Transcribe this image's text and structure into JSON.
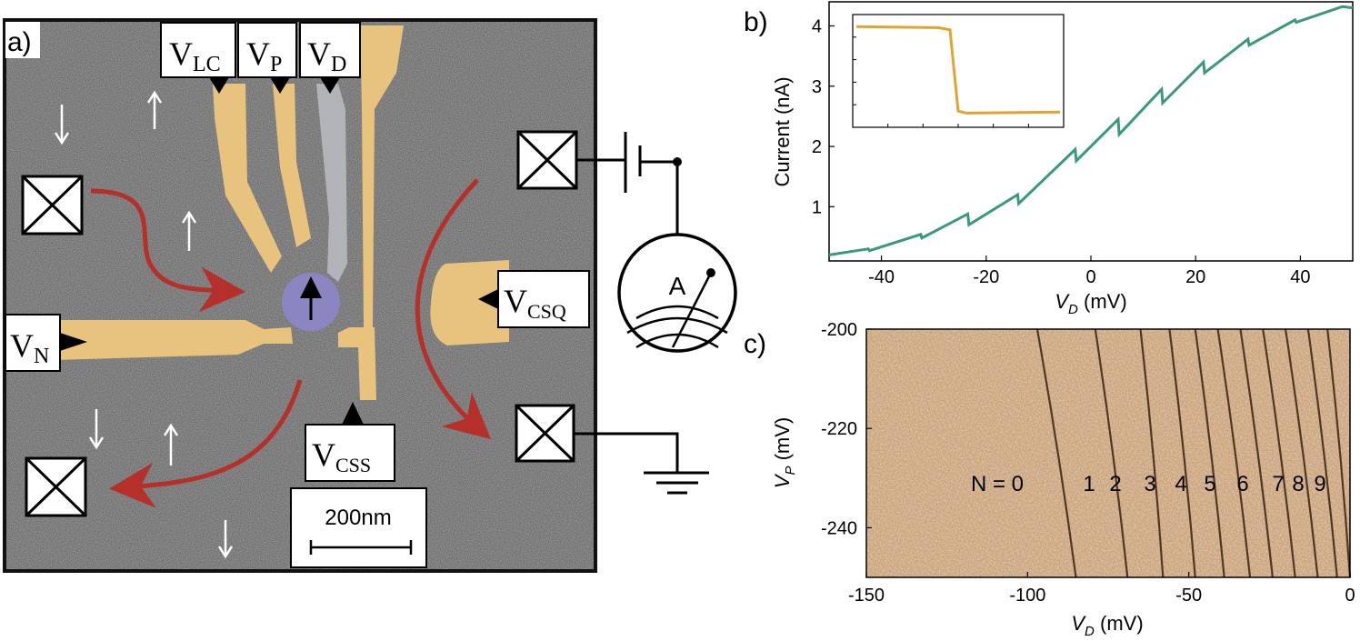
{
  "panel_a": {
    "label": "a)",
    "gates": {
      "vlc": {
        "main": "V",
        "sub": "LC"
      },
      "vp": {
        "main": "V",
        "sub": "P"
      },
      "vd": {
        "main": "V",
        "sub": "D"
      },
      "vn": {
        "main": "V",
        "sub": "N"
      },
      "vcsq": {
        "main": "V",
        "sub": "CSQ"
      },
      "vcss": {
        "main": "V",
        "sub": "CSS"
      }
    },
    "scale_bar": "200nm",
    "ammeter": "A",
    "colors": {
      "gate": "#e8c37e",
      "plunger_gate": "#b8b8c0",
      "substrate": "#6b6b6b",
      "arrow": "#b5302a",
      "dot": "#8f88d8"
    }
  },
  "panel_b": {
    "label": "b)",
    "chart_data": {
      "type": "line",
      "xlabel_main": "V",
      "xlabel_sub": "D",
      "xlabel_unit": " (mV)",
      "ylabel": "Current (nA)",
      "xlim": [
        -50,
        50
      ],
      "ylim": [
        0.1,
        4.4
      ],
      "xticks": [
        "-40",
        "-20",
        "0",
        "20",
        "40"
      ],
      "yticks": [
        "1",
        "2",
        "3",
        "4"
      ],
      "color": "#3a9a78",
      "points": [
        [
          -50,
          0.2
        ],
        [
          -42.5,
          0.3
        ],
        [
          -42.3,
          0.27
        ],
        [
          -32.5,
          0.54
        ],
        [
          -32.3,
          0.48
        ],
        [
          -23.5,
          0.88
        ],
        [
          -23.3,
          0.7
        ],
        [
          -14,
          1.2
        ],
        [
          -13.8,
          1.05
        ],
        [
          -3,
          1.95
        ],
        [
          -2.8,
          1.76
        ],
        [
          5.2,
          2.45
        ],
        [
          5.4,
          2.2
        ],
        [
          13.5,
          2.95
        ],
        [
          13.7,
          2.72
        ],
        [
          21.5,
          3.4
        ],
        [
          21.7,
          3.22
        ],
        [
          30,
          3.78
        ],
        [
          30.2,
          3.68
        ],
        [
          39,
          4.1
        ],
        [
          39.2,
          4.06
        ],
        [
          48,
          4.32
        ],
        [
          50,
          4.3
        ]
      ]
    },
    "inset": {
      "color": "#e0a430",
      "points": [
        [
          0,
          0.08
        ],
        [
          0.4,
          0.09
        ],
        [
          0.46,
          0.11
        ],
        [
          0.48,
          0.5
        ],
        [
          0.5,
          0.88
        ],
        [
          0.54,
          0.9
        ],
        [
          1,
          0.89
        ]
      ]
    }
  },
  "panel_c": {
    "label": "c)",
    "chart_data": {
      "type": "heatmap",
      "xlabel_main": "V",
      "xlabel_sub": "D",
      "xlabel_unit": " (mV)",
      "ylabel_main": "V",
      "ylabel_sub": "P",
      "ylabel_unit": " (mV)",
      "xlim": [
        -150,
        0
      ],
      "ylim": [
        -250,
        -200
      ],
      "xticks": [
        "-150",
        "-100",
        "-50",
        "0"
      ],
      "yticks": [
        "-200",
        "-220",
        "-240"
      ],
      "background_color": "#c9a27a",
      "line_color": "#3a2210",
      "transition_lines": [
        {
          "x_top": -97,
          "x_bottom": -85
        },
        {
          "x_top": -79,
          "x_bottom": -69
        },
        {
          "x_top": -65,
          "x_bottom": -58
        },
        {
          "x_top": -56,
          "x_bottom": -48
        },
        {
          "x_top": -48,
          "x_bottom": -39
        },
        {
          "x_top": -41,
          "x_bottom": -31
        },
        {
          "x_top": -34,
          "x_bottom": -24
        },
        {
          "x_top": -27,
          "x_bottom": -17
        },
        {
          "x_top": -20,
          "x_bottom": -10
        },
        {
          "x_top": -13,
          "x_bottom": -4
        },
        {
          "x_top": -7,
          "x_bottom": 0
        }
      ],
      "annotations": [
        "N = 0",
        "1",
        "2",
        "3",
        "4",
        "5",
        "6",
        "7",
        "8",
        "9"
      ]
    }
  }
}
